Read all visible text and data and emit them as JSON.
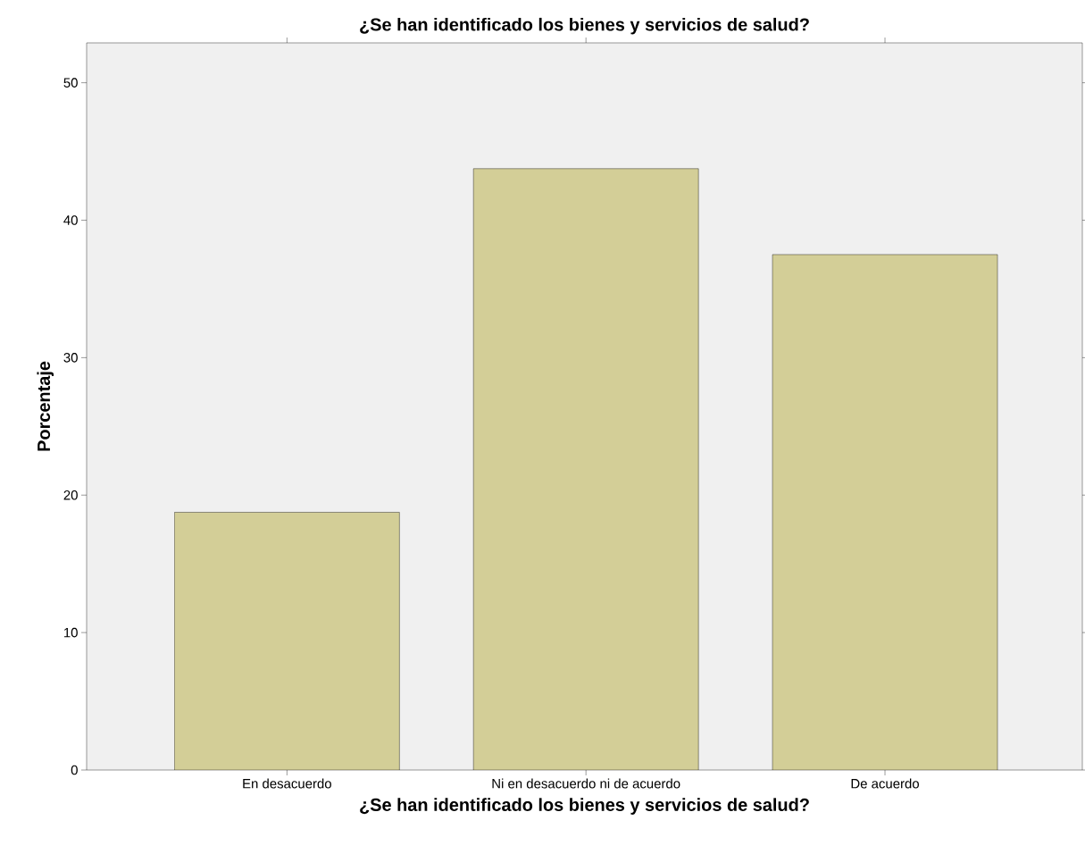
{
  "chart_data": {
    "type": "bar",
    "title": "¿Se han identificado los bienes y servicios de salud?",
    "xlabel": "¿Se han identificado los bienes y servicios de salud?",
    "ylabel": "Porcentaje",
    "categories": [
      "En desacuerdo",
      "Ni en desacuerdo ni de acuerdo",
      "De acuerdo"
    ],
    "values": [
      18.75,
      43.75,
      37.5
    ],
    "color": "#d3ce97",
    "ylim": [
      0,
      52.9
    ],
    "yticks": [
      0,
      10,
      20,
      30,
      40,
      50
    ],
    "grid": false
  }
}
